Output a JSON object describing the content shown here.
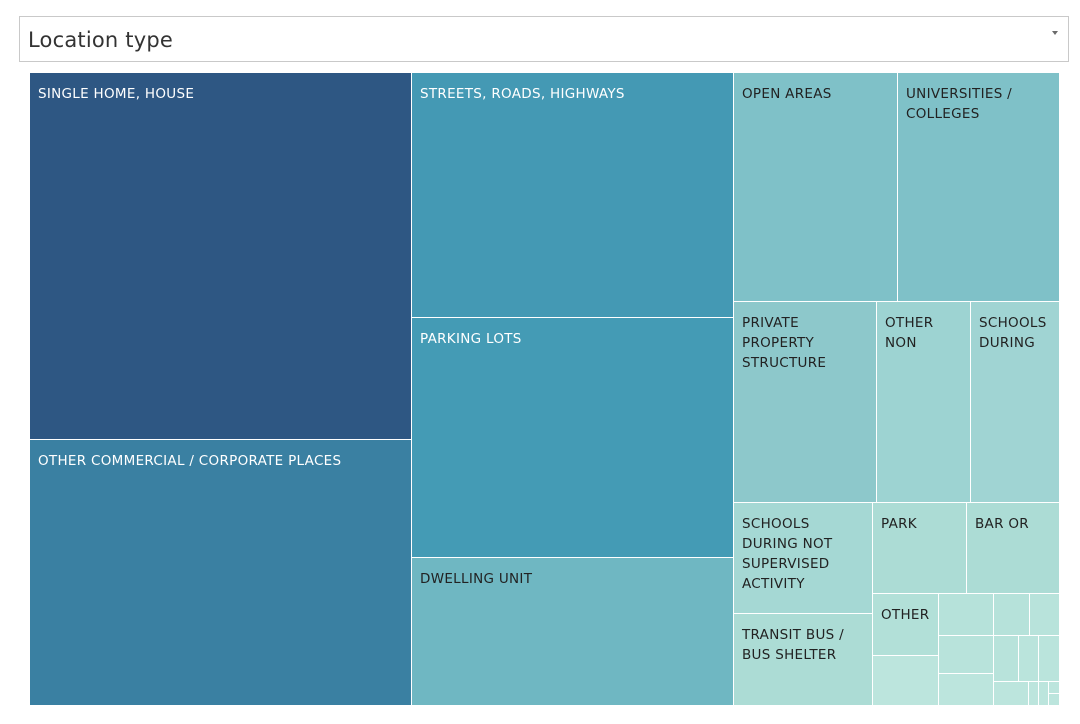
{
  "filter": {
    "label": "Location type"
  },
  "chart_data": {
    "type": "treemap",
    "categories": [
      "SINGLE HOME, HOUSE",
      "OTHER COMMERCIAL / CORPORATE PLACES",
      "STREETS, ROADS, HIGHWAYS",
      "PARKING LOTS",
      "DWELLING UNIT",
      "OPEN AREAS",
      "UNIVERSITIES / COLLEGES",
      "PRIVATE PROPERTY STRUCTURE",
      "OTHER NON",
      "SCHOOLS DURING",
      "SCHOOLS DURING NOT SUPERVISED ACTIVITY",
      "PARK",
      "BAR OR",
      "TRANSIT BUS / BUS SHELTER",
      "OTHER"
    ],
    "tiles": [
      {
        "label": "SINGLE HOME, HOUSE",
        "display": "SINGLE HOME, HOUSE",
        "value": 140,
        "color": "#2e5783",
        "text_color": "#ffffff"
      },
      {
        "label": "OTHER COMMERCIAL / CORPORATE PLACES",
        "display": "OTHER COMMERCIAL / CORPORATE PLACES",
        "value": 102,
        "color": "#3a80a2",
        "text_color": "#ffffff"
      },
      {
        "label": "STREETS, ROADS, HIGHWAYS",
        "display": "STREETS, ROADS, HIGHWAYS",
        "value": 78,
        "color": "#4499b4",
        "text_color": "#ffffff"
      },
      {
        "label": "PARKING LOTS",
        "display": "PARKING LOTS",
        "value": 77,
        "color": "#449bb5",
        "text_color": "#ffffff"
      },
      {
        "label": "DWELLING UNIT",
        "display": "DWELLING UNIT",
        "value": 47,
        "color": "#6fb7c2",
        "text_color": "#222222"
      },
      {
        "label": "OPEN AREAS",
        "display": "OPEN AREAS",
        "value": 37,
        "color": "#7fc1c8",
        "text_color": "#222222"
      },
      {
        "label": "UNIVERSITIES / COLLEGES",
        "display": "UNIVERSITIES /\nCOLLEGES",
        "value": 36,
        "color": "#7fc1c8",
        "text_color": "#222222"
      },
      {
        "label": "PRIVATE PROPERTY STRUCTURE",
        "display": "PRIVATE\nPROPERTY\nSTRUCTURE",
        "value": 28,
        "color": "#8dc8cb",
        "text_color": "#222222"
      },
      {
        "label": "OTHER NON",
        "display": "OTHER\nNON",
        "value": 19,
        "color": "#9dd3d2",
        "text_color": "#222222"
      },
      {
        "label": "SCHOOLS DURING",
        "display": "SCHOOLS\nDURING",
        "value": 18,
        "color": "#a0d4d3",
        "text_color": "#222222"
      },
      {
        "label": "SCHOOLS DURING NOT SUPERVISED ACTIVITY",
        "display": "SCHOOLS\nDURING NOT\nSUPERVISED\nACTIVITY",
        "value": 14,
        "color": "#a5d8d4",
        "text_color": "#222222"
      },
      {
        "label": "PARK",
        "display": "PARK",
        "value": 11,
        "color": "#acdcd5",
        "text_color": "#222222"
      },
      {
        "label": "BAR OR",
        "display": "BAR OR",
        "value": 11,
        "color": "#acdcd5",
        "text_color": "#222222"
      },
      {
        "label": "TRANSIT BUS / BUS SHELTER",
        "display": "TRANSIT BUS /\nBUS SHELTER",
        "value": 12,
        "color": "#acdcd5",
        "text_color": "#222222"
      },
      {
        "label": "OTHER",
        "display": "OTHER",
        "value": 7,
        "color": "#b2e0d8",
        "text_color": "#222222"
      },
      {
        "label": "",
        "display": "",
        "value": 4,
        "color": "#b6e2da",
        "text_color": "#222222"
      },
      {
        "label": "",
        "display": "",
        "value": 4,
        "color": "#b6e2da",
        "text_color": "#222222"
      },
      {
        "label": "",
        "display": "",
        "value": 3,
        "color": "#b8e3db",
        "text_color": "#222222"
      },
      {
        "label": "",
        "display": "",
        "value": 3,
        "color": "#b8e3db",
        "text_color": "#222222"
      },
      {
        "label": "",
        "display": "",
        "value": 3,
        "color": "#b8e3db",
        "text_color": "#222222"
      },
      {
        "label": "",
        "display": "",
        "value": 2,
        "color": "#bae4dc",
        "text_color": "#222222"
      },
      {
        "label": "",
        "display": "",
        "value": 2,
        "color": "#bae4dc",
        "text_color": "#222222"
      },
      {
        "label": "",
        "display": "",
        "value": 1,
        "color": "#bce5dd",
        "text_color": "#222222"
      },
      {
        "label": "",
        "display": "",
        "value": 1,
        "color": "#bce5dd",
        "text_color": "#222222"
      },
      {
        "label": "",
        "display": "",
        "value": 1,
        "color": "#bce5dd",
        "text_color": "#222222"
      },
      {
        "label": "",
        "display": "",
        "value": 1,
        "color": "#bce5dd",
        "text_color": "#222222"
      },
      {
        "label": "",
        "display": "",
        "value": 1,
        "color": "#bce5dd",
        "text_color": "#222222"
      },
      {
        "label": "",
        "display": "",
        "value": 1,
        "color": "#bce5dd",
        "text_color": "#222222"
      },
      {
        "label": "",
        "display": "",
        "value": 1,
        "color": "#bce5dd",
        "text_color": "#222222"
      }
    ]
  }
}
